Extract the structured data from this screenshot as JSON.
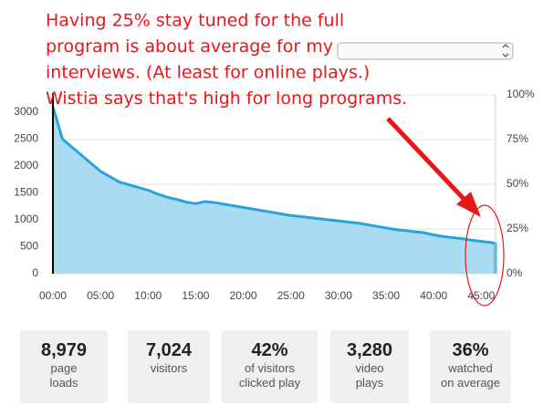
{
  "chart_data": {
    "type": "area",
    "x": [
      0,
      1,
      2,
      3,
      4,
      5,
      6,
      7,
      8,
      9,
      10,
      11,
      12,
      13,
      14,
      15,
      16,
      17,
      18,
      19,
      20,
      21,
      22,
      23,
      24,
      25,
      26,
      27,
      28,
      29,
      30,
      31,
      32,
      33,
      34,
      35,
      36,
      37,
      38,
      39,
      40,
      41,
      42,
      43,
      44,
      45,
      46,
      46.5
    ],
    "series": [
      {
        "color": "#2aa3dc",
        "fill": "#a9dcf2",
        "values": [
          3100,
          2500,
          2350,
          2200,
          2050,
          1900,
          1800,
          1700,
          1650,
          1600,
          1550,
          1480,
          1420,
          1380,
          1330,
          1300,
          1340,
          1320,
          1290,
          1260,
          1230,
          1200,
          1170,
          1140,
          1110,
          1080,
          1060,
          1040,
          1020,
          1000,
          980,
          960,
          940,
          910,
          880,
          850,
          820,
          800,
          780,
          760,
          720,
          690,
          670,
          650,
          620,
          600,
          580,
          560
        ]
      }
    ],
    "xlim": [
      0,
      46.5
    ],
    "xticks": [
      {
        "value": 0,
        "label": "00:00"
      },
      {
        "value": 5,
        "label": "05:00"
      },
      {
        "value": 10,
        "label": "10:00"
      },
      {
        "value": 15,
        "label": "15:00"
      },
      {
        "value": 20,
        "label": "20:00"
      },
      {
        "value": 25,
        "label": "25:00"
      },
      {
        "value": 30,
        "label": "30:00"
      },
      {
        "value": 35,
        "label": "35:00"
      },
      {
        "value": 40,
        "label": "40:00"
      },
      {
        "value": 45,
        "label": "45:00"
      }
    ],
    "ylim": [
      0,
      3320
    ],
    "yticks": [
      0,
      500,
      1000,
      1500,
      2000,
      2500,
      3000
    ],
    "y2lim": [
      0,
      100
    ],
    "y2ticks": [
      {
        "value": 0,
        "label": "0%"
      },
      {
        "value": 25,
        "label": "25%"
      },
      {
        "value": 50,
        "label": "50%"
      },
      {
        "value": 75,
        "label": "75%"
      },
      {
        "value": 100,
        "label": "100%"
      }
    ],
    "grid": "y2",
    "grid_color": "#d6ecbf",
    "annotation": [
      "Having 25% stay tuned for the full",
      "program is about average for my",
      "interviews. (At least for online plays.)",
      "Wistia says that's high for long programs."
    ],
    "annotation_color": "#e8161b"
  },
  "stats": [
    {
      "value": "8,979",
      "label": [
        "page",
        "loads"
      ]
    },
    {
      "value": "7,024",
      "label": [
        "visitors"
      ]
    },
    {
      "value": "42%",
      "label": [
        "of visitors",
        "clicked play"
      ]
    },
    {
      "value": "3,280",
      "label": [
        "video",
        "plays"
      ]
    },
    {
      "value": "36%",
      "label": [
        "watched",
        "on average"
      ]
    }
  ]
}
